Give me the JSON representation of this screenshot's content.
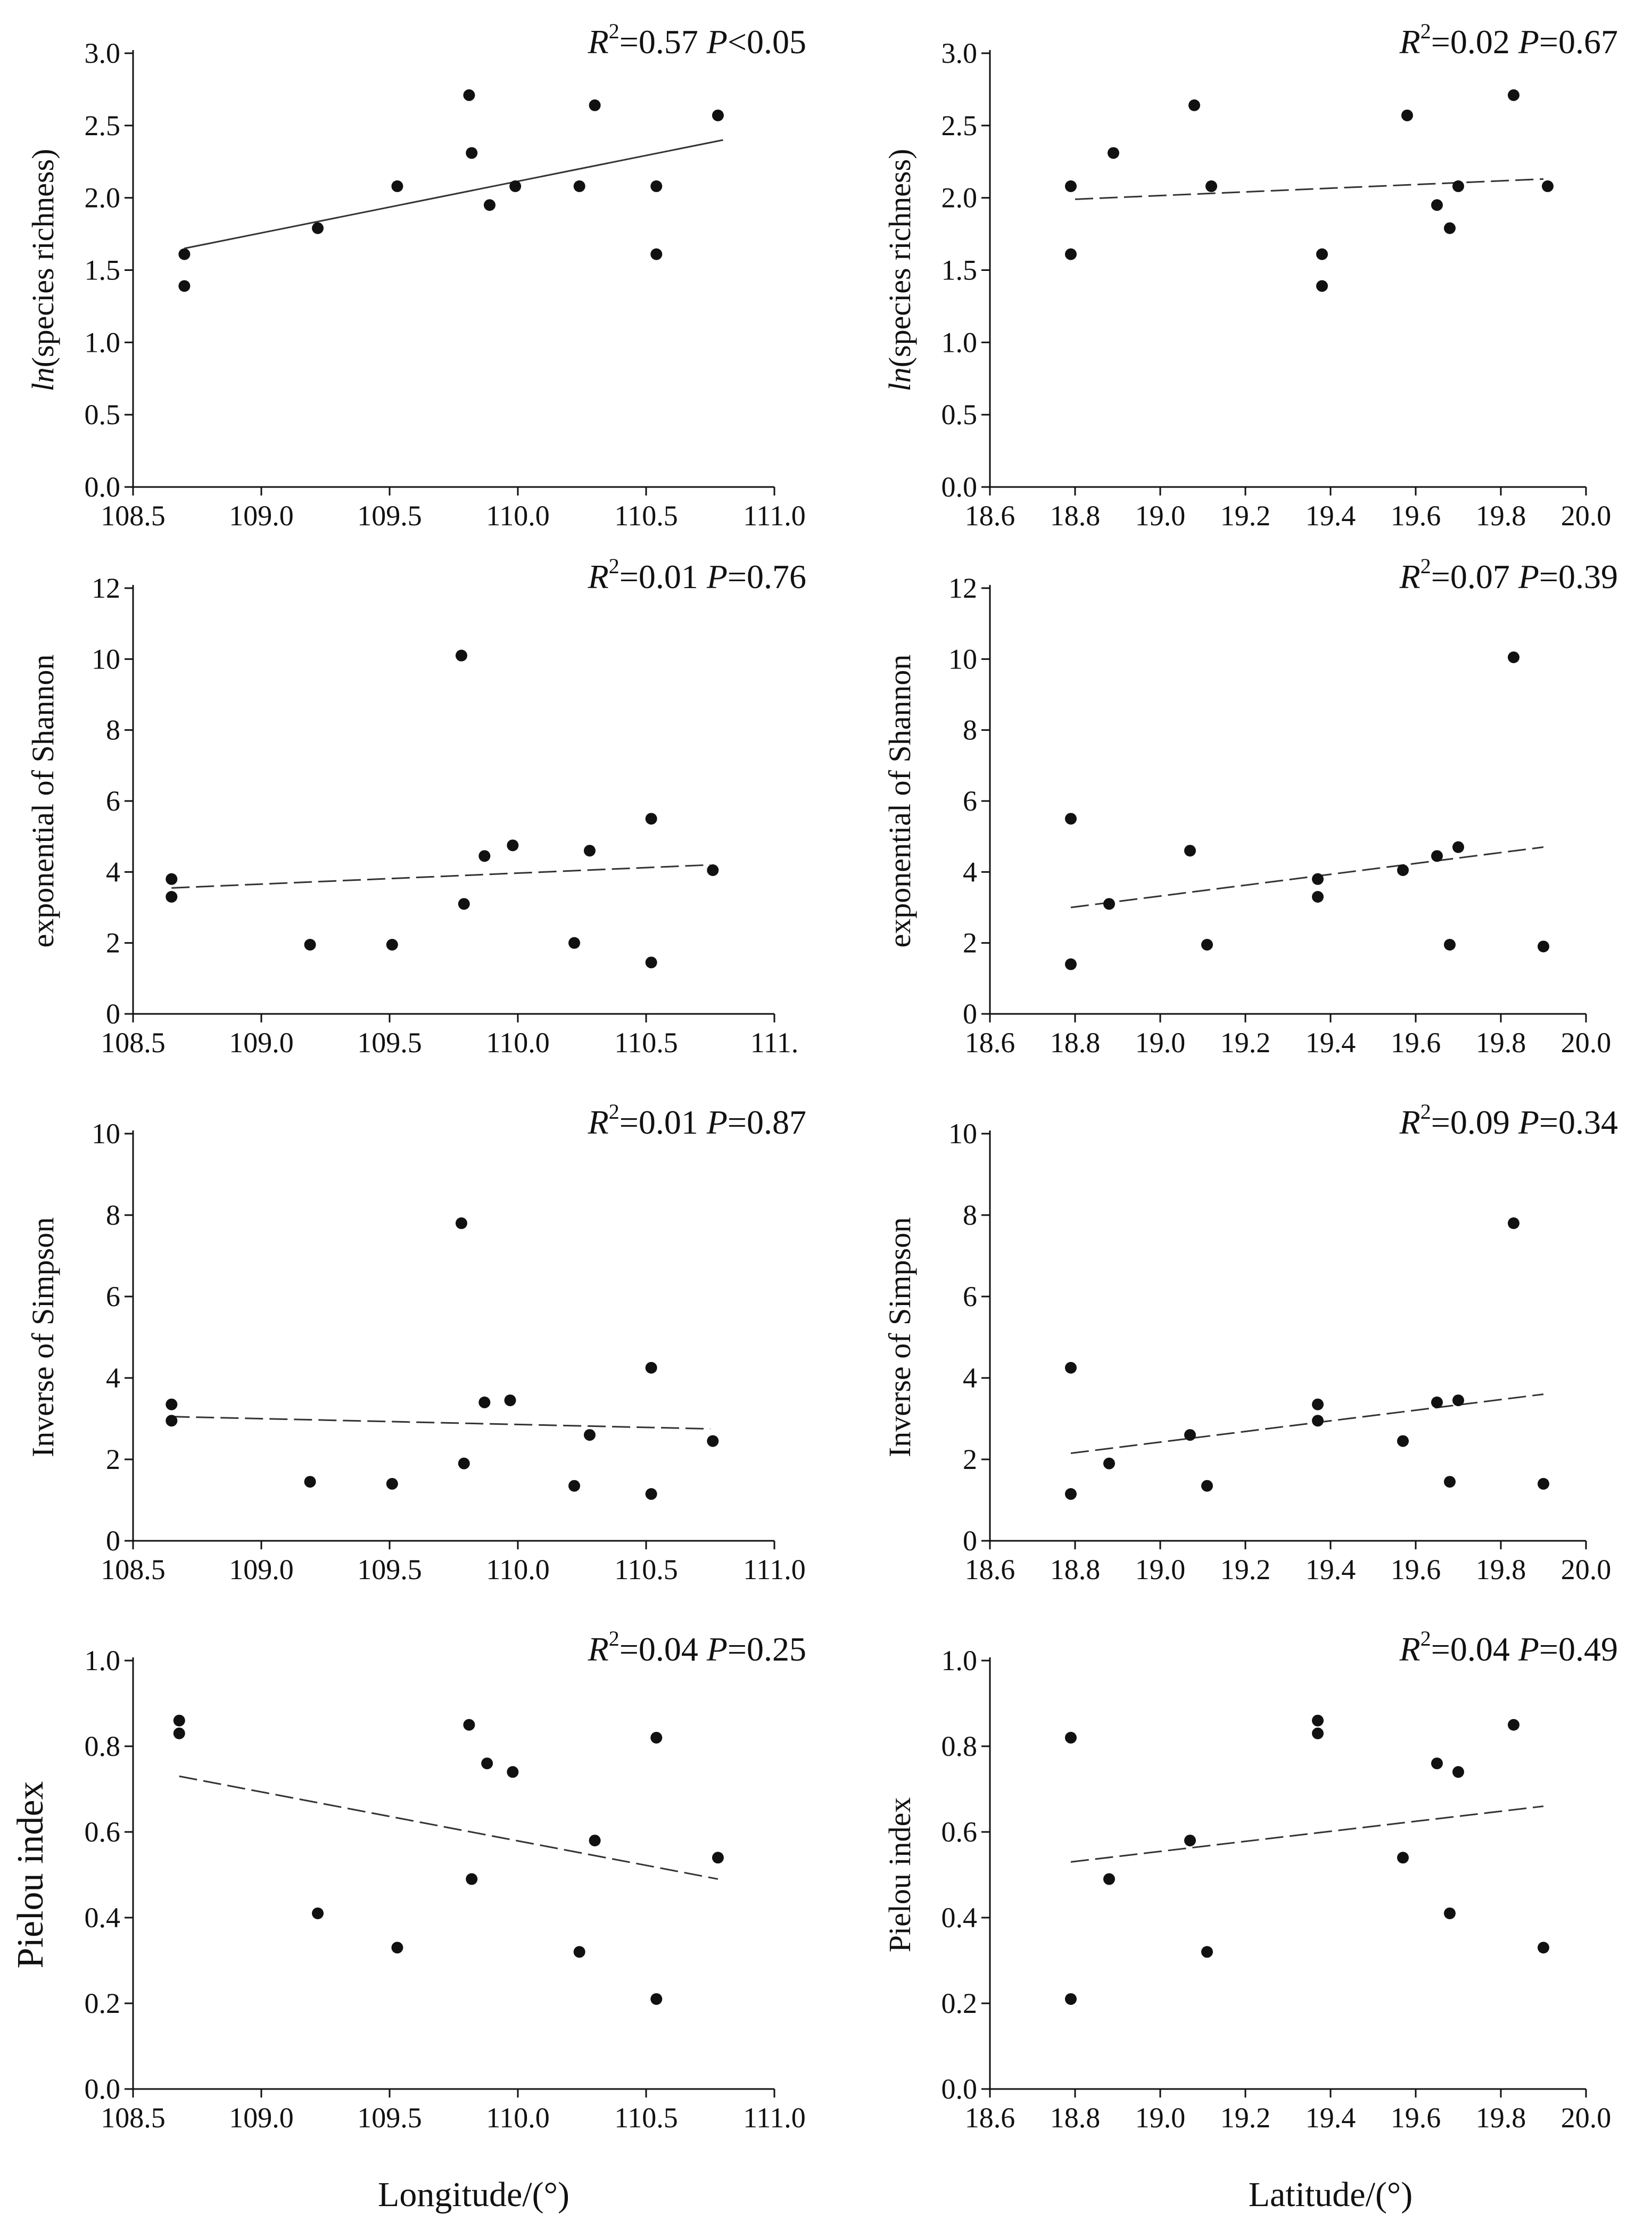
{
  "x_axis_titles": {
    "left": "Longitude/(°)",
    "right": "Latitude/(°)"
  },
  "chart_data": [
    {
      "type": "scatter",
      "id": "lon-richness",
      "ylabel": {
        "italic": "ln",
        "rest": "(species richness)"
      },
      "xlabel": "",
      "stat": {
        "r2": "0.57",
        "p_op": "<",
        "p": "0.05"
      },
      "fit": "solid",
      "xlim": [
        108.5,
        111.0
      ],
      "ylim": [
        0.0,
        3.0
      ],
      "xticks": [
        108.5,
        109.0,
        109.5,
        110.0,
        110.5,
        111.0
      ],
      "xtick_labels": [
        "108.5",
        "109.0",
        "109.5",
        "110.0",
        "110.5",
        "111.0"
      ],
      "yticks": [
        0,
        0.5,
        1,
        1.5,
        2,
        2.5,
        3
      ],
      "ytick_labels": [
        "0.0",
        "0.5",
        "1.0",
        "1.5",
        "2.0",
        "2.5",
        "3.0"
      ],
      "trend": [
        [
          108.7,
          1.65
        ],
        [
          110.8,
          2.4
        ]
      ],
      "points": [
        [
          108.7,
          1.61
        ],
        [
          108.7,
          1.39
        ],
        [
          109.22,
          1.79
        ],
        [
          109.53,
          2.08
        ],
        [
          109.81,
          2.71
        ],
        [
          109.82,
          2.31
        ],
        [
          109.89,
          1.95
        ],
        [
          109.99,
          2.08
        ],
        [
          110.24,
          2.08
        ],
        [
          110.3,
          2.64
        ],
        [
          110.54,
          2.08
        ],
        [
          110.54,
          1.61
        ],
        [
          110.78,
          2.57
        ]
      ]
    },
    {
      "type": "scatter",
      "id": "lat-richness",
      "ylabel": {
        "italic": "ln",
        "rest": "(species richness)"
      },
      "xlabel": "",
      "stat": {
        "r2": "0.02",
        "p_op": "=",
        "p": "0.67"
      },
      "fit": "dashed",
      "xlim": [
        18.6,
        20.0
      ],
      "ylim": [
        0.0,
        3.0
      ],
      "xticks": [
        18.6,
        18.8,
        19.0,
        19.2,
        19.4,
        19.6,
        19.8,
        20.0
      ],
      "xtick_labels": [
        "18.6",
        "18.8",
        "19.0",
        "19.2",
        "19.4",
        "19.6",
        "19.8",
        "20.0"
      ],
      "yticks": [
        0,
        0.5,
        1,
        1.5,
        2,
        2.5,
        3
      ],
      "ytick_labels": [
        "0.0",
        "0.5",
        "1.0",
        "1.5",
        "2.0",
        "2.5",
        "3.0"
      ],
      "trend": [
        [
          18.8,
          1.99
        ],
        [
          19.9,
          2.13
        ]
      ],
      "points": [
        [
          18.79,
          2.08
        ],
        [
          18.79,
          1.61
        ],
        [
          18.89,
          2.31
        ],
        [
          19.08,
          2.64
        ],
        [
          19.12,
          2.08
        ],
        [
          19.38,
          1.61
        ],
        [
          19.38,
          1.39
        ],
        [
          19.58,
          2.57
        ],
        [
          19.65,
          1.95
        ],
        [
          19.68,
          1.79
        ],
        [
          19.7,
          2.08
        ],
        [
          19.83,
          2.71
        ],
        [
          19.91,
          2.08
        ]
      ]
    },
    {
      "type": "scatter",
      "id": "lon-shannon",
      "ylabel": {
        "italic": "",
        "rest": "exponential of Shannon"
      },
      "xlabel": "",
      "stat": {
        "r2": "0.01",
        "p_op": "=",
        "p": "0.76"
      },
      "fit": "dashed",
      "xlim": [
        108.5,
        111.0
      ],
      "ylim": [
        0,
        12
      ],
      "xticks": [
        108.5,
        109.0,
        109.5,
        110.0,
        110.5,
        111.0
      ],
      "xtick_labels": [
        "108.5",
        "109.0",
        "109.5",
        "110.0",
        "110.5",
        "111."
      ],
      "yticks": [
        0,
        2,
        4,
        6,
        8,
        10,
        12
      ],
      "ytick_labels": [
        "0",
        "2",
        "4",
        "6",
        "8",
        "10",
        "12"
      ],
      "trend": [
        [
          108.65,
          3.55
        ],
        [
          110.75,
          4.2
        ]
      ],
      "points": [
        [
          108.65,
          3.8
        ],
        [
          108.65,
          3.3
        ],
        [
          109.19,
          1.95
        ],
        [
          109.51,
          1.95
        ],
        [
          109.78,
          10.1
        ],
        [
          109.79,
          3.1
        ],
        [
          109.87,
          4.45
        ],
        [
          109.98,
          4.75
        ],
        [
          110.22,
          2.0
        ],
        [
          110.28,
          4.6
        ],
        [
          110.52,
          5.5
        ],
        [
          110.52,
          1.45
        ],
        [
          110.76,
          4.05
        ]
      ]
    },
    {
      "type": "scatter",
      "id": "lat-shannon",
      "ylabel": {
        "italic": "",
        "rest": "exponential of Shannon"
      },
      "xlabel": "",
      "stat": {
        "r2": "0.07",
        "p_op": "=",
        "p": "0.39"
      },
      "fit": "dashed",
      "xlim": [
        18.6,
        20.0
      ],
      "ylim": [
        0,
        12
      ],
      "xticks": [
        18.6,
        18.8,
        19.0,
        19.2,
        19.4,
        19.6,
        19.8,
        20.0
      ],
      "xtick_labels": [
        "18.6",
        "18.8",
        "19.0",
        "19.2",
        "19.4",
        "19.6",
        "19.8",
        "20.0"
      ],
      "yticks": [
        0,
        2,
        4,
        6,
        8,
        10,
        12
      ],
      "ytick_labels": [
        "0",
        "2",
        "4",
        "6",
        "8",
        "10",
        "12"
      ],
      "trend": [
        [
          18.79,
          3.0
        ],
        [
          19.9,
          4.7
        ]
      ],
      "points": [
        [
          18.79,
          5.5
        ],
        [
          18.79,
          1.4
        ],
        [
          18.88,
          3.1
        ],
        [
          19.07,
          4.6
        ],
        [
          19.11,
          1.95
        ],
        [
          19.37,
          3.8
        ],
        [
          19.37,
          3.3
        ],
        [
          19.57,
          4.05
        ],
        [
          19.65,
          4.45
        ],
        [
          19.68,
          1.95
        ],
        [
          19.7,
          4.7
        ],
        [
          19.83,
          10.05
        ],
        [
          19.9,
          1.9
        ]
      ]
    },
    {
      "type": "scatter",
      "id": "lon-simpson",
      "ylabel": {
        "italic": "",
        "rest": "Inverse of Simpson"
      },
      "xlabel": "",
      "stat": {
        "r2": "0.01",
        "p_op": "=",
        "p": "0.87"
      },
      "fit": "dashed",
      "xlim": [
        108.5,
        111.0
      ],
      "ylim": [
        0,
        10
      ],
      "xticks": [
        108.5,
        109.0,
        109.5,
        110.0,
        110.5,
        111.0
      ],
      "xtick_labels": [
        "108.5",
        "109.0",
        "109.5",
        "110.0",
        "110.5",
        "111.0"
      ],
      "yticks": [
        0,
        2,
        4,
        6,
        8,
        10
      ],
      "ytick_labels": [
        "0",
        "2",
        "4",
        "6",
        "8",
        "10"
      ],
      "trend": [
        [
          108.65,
          3.05
        ],
        [
          110.75,
          2.75
        ]
      ],
      "points": [
        [
          108.65,
          3.35
        ],
        [
          108.65,
          2.95
        ],
        [
          109.19,
          1.45
        ],
        [
          109.51,
          1.4
        ],
        [
          109.78,
          7.8
        ],
        [
          109.79,
          1.9
        ],
        [
          109.87,
          3.4
        ],
        [
          109.97,
          3.45
        ],
        [
          110.22,
          1.35
        ],
        [
          110.28,
          2.6
        ],
        [
          110.52,
          4.25
        ],
        [
          110.52,
          1.15
        ],
        [
          110.76,
          2.45
        ]
      ]
    },
    {
      "type": "scatter",
      "id": "lat-simpson",
      "ylabel": {
        "italic": "",
        "rest": "Inverse of Simpson"
      },
      "xlabel": "",
      "stat": {
        "r2": "0.09",
        "p_op": "=",
        "p": "0.34"
      },
      "fit": "dashed",
      "xlim": [
        18.6,
        20.0
      ],
      "ylim": [
        0,
        10
      ],
      "xticks": [
        18.6,
        18.8,
        19.0,
        19.2,
        19.4,
        19.6,
        19.8,
        20.0
      ],
      "xtick_labels": [
        "18.6",
        "18.8",
        "19.0",
        "19.2",
        "19.4",
        "19.6",
        "19.8",
        "20.0"
      ],
      "yticks": [
        0,
        2,
        4,
        6,
        8,
        10
      ],
      "ytick_labels": [
        "0",
        "2",
        "4",
        "6",
        "8",
        "10"
      ],
      "trend": [
        [
          18.79,
          2.15
        ],
        [
          19.9,
          3.6
        ]
      ],
      "points": [
        [
          18.79,
          4.25
        ],
        [
          18.79,
          1.15
        ],
        [
          18.88,
          1.9
        ],
        [
          19.07,
          2.6
        ],
        [
          19.11,
          1.35
        ],
        [
          19.37,
          3.35
        ],
        [
          19.37,
          2.95
        ],
        [
          19.57,
          2.45
        ],
        [
          19.65,
          3.4
        ],
        [
          19.68,
          1.45
        ],
        [
          19.7,
          3.45
        ],
        [
          19.83,
          7.8
        ],
        [
          19.9,
          1.4
        ]
      ]
    },
    {
      "type": "scatter",
      "id": "lon-pielou",
      "ylabel": {
        "italic": "",
        "rest": "Pielou index"
      },
      "xlabel": "Longitude/(°)",
      "stat": {
        "r2": "0.04",
        "p_op": "=",
        "p": "0.25"
      },
      "fit": "dashed",
      "xlim": [
        108.5,
        111.0
      ],
      "ylim": [
        0.0,
        1.0
      ],
      "xticks": [
        108.5,
        109.0,
        109.5,
        110.0,
        110.5,
        111.0
      ],
      "xtick_labels": [
        "108.5",
        "109.0",
        "109.5",
        "110.0",
        "110.5",
        "111.0"
      ],
      "yticks": [
        0,
        0.2,
        0.4,
        0.6,
        0.8,
        1.0
      ],
      "ytick_labels": [
        "0.0",
        "0.2",
        "0.4",
        "0.6",
        "0.8",
        "1.0"
      ],
      "trend": [
        [
          108.68,
          0.73
        ],
        [
          110.78,
          0.49
        ]
      ],
      "points": [
        [
          108.68,
          0.86
        ],
        [
          108.68,
          0.83
        ],
        [
          109.22,
          0.41
        ],
        [
          109.53,
          0.33
        ],
        [
          109.81,
          0.85
        ],
        [
          109.82,
          0.49
        ],
        [
          109.88,
          0.76
        ],
        [
          109.98,
          0.74
        ],
        [
          110.24,
          0.32
        ],
        [
          110.3,
          0.58
        ],
        [
          110.54,
          0.82
        ],
        [
          110.54,
          0.21
        ],
        [
          110.78,
          0.54
        ]
      ]
    },
    {
      "type": "scatter",
      "id": "lat-pielou",
      "ylabel": {
        "italic": "",
        "rest": "Pielou index"
      },
      "xlabel": "Latitude/(°)",
      "stat": {
        "r2": "0.04",
        "p_op": "=",
        "p": "0.49"
      },
      "fit": "dashed",
      "xlim": [
        18.6,
        20.0
      ],
      "ylim": [
        0.0,
        1.0
      ],
      "xticks": [
        18.6,
        18.8,
        19.0,
        19.2,
        19.4,
        19.6,
        19.8,
        20.0
      ],
      "xtick_labels": [
        "18.6",
        "18.8",
        "19.0",
        "19.2",
        "19.4",
        "19.6",
        "19.8",
        "20.0"
      ],
      "yticks": [
        0,
        0.2,
        0.4,
        0.6,
        0.8,
        1.0
      ],
      "ytick_labels": [
        "0.0",
        "0.2",
        "0.4",
        "0.6",
        "0.8",
        "1.0"
      ],
      "trend": [
        [
          18.79,
          0.53
        ],
        [
          19.9,
          0.66
        ]
      ],
      "points": [
        [
          18.79,
          0.82
        ],
        [
          18.79,
          0.21
        ],
        [
          18.88,
          0.49
        ],
        [
          19.07,
          0.58
        ],
        [
          19.11,
          0.32
        ],
        [
          19.37,
          0.86
        ],
        [
          19.37,
          0.83
        ],
        [
          19.57,
          0.54
        ],
        [
          19.65,
          0.76
        ],
        [
          19.68,
          0.41
        ],
        [
          19.7,
          0.74
        ],
        [
          19.83,
          0.85
        ],
        [
          19.9,
          0.33
        ]
      ]
    }
  ]
}
